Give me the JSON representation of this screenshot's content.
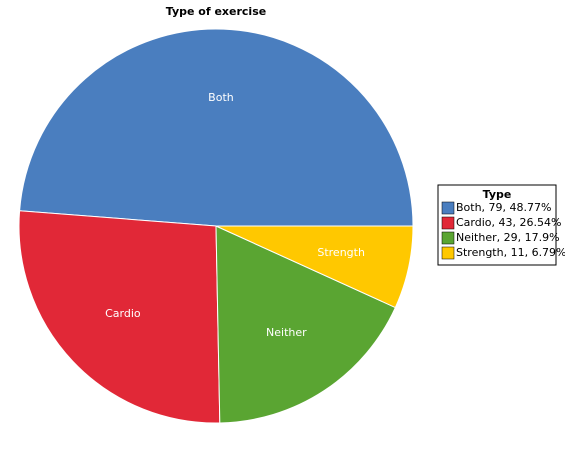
{
  "chart_data": {
    "type": "pie",
    "title": "Type of exercise",
    "categories": [
      "Both",
      "Cardio",
      "Neither",
      "Strength"
    ],
    "values": [
      79,
      43,
      29,
      11
    ],
    "value_labels": [
      "Both, 79, 48.77%",
      "Cardio, 43, 26.54%",
      "Neither, 29, 17.9%",
      "Strength, 11, 6.79%"
    ],
    "colors": [
      "#4a7ebf",
      "#e12837",
      "#5aa532",
      "#ffc800"
    ],
    "legend_title": "Type",
    "legend": "right"
  }
}
